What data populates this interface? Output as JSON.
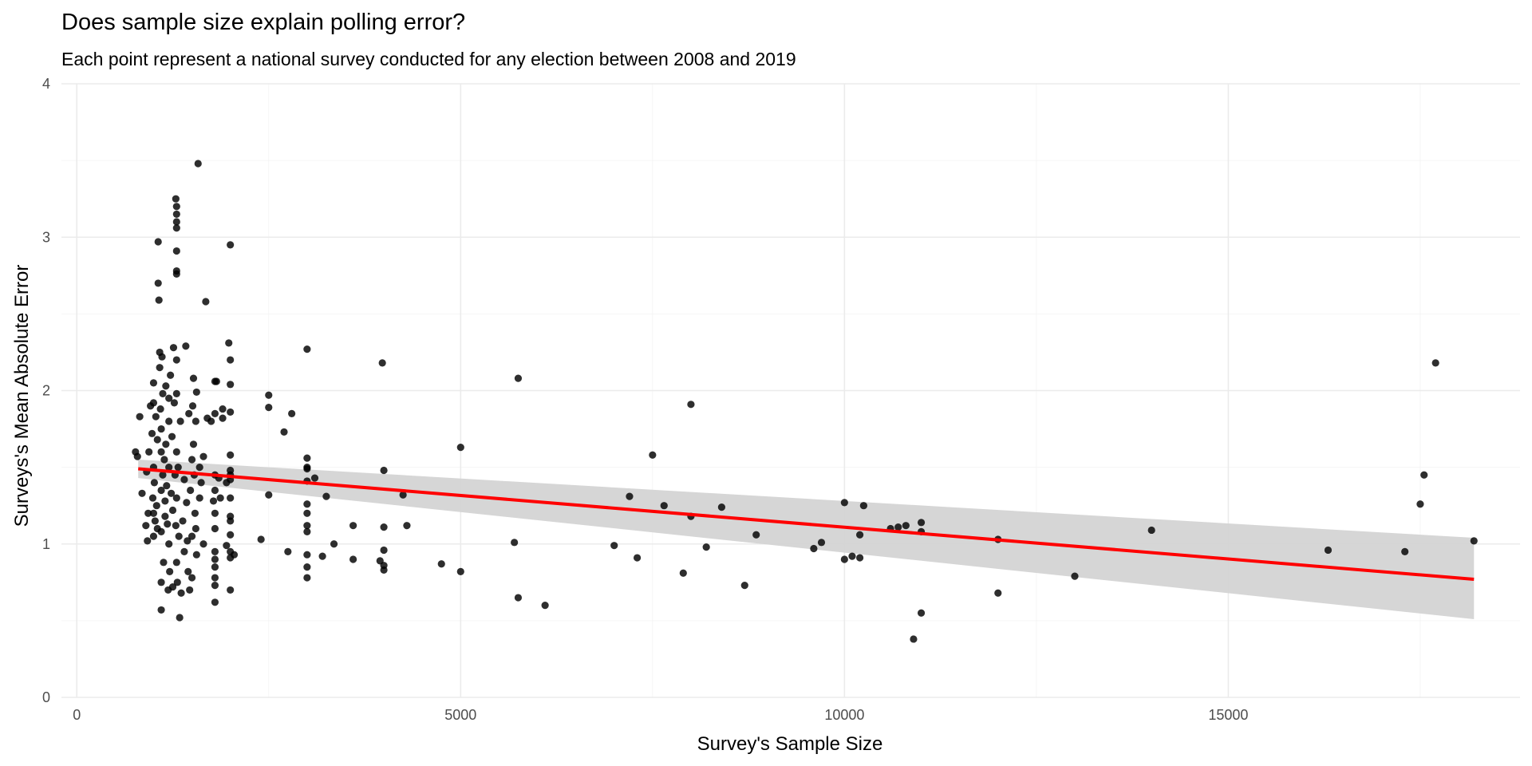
{
  "chart_data": {
    "type": "scatter",
    "title": "Does sample size explain polling error?",
    "subtitle": "Each point represent a national survey conducted for any election between 2008 and 2019",
    "xlabel": "Survey's Sample Size",
    "ylabel": "Surveys's Mean Absolute Error",
    "xlim": [
      -200,
      18800
    ],
    "ylim": [
      0,
      4
    ],
    "x_ticks": [
      0,
      5000,
      10000,
      15000
    ],
    "x_tick_labels": [
      "0",
      "5000",
      "10000",
      "15000"
    ],
    "y_ticks": [
      0,
      1,
      2,
      3,
      4
    ],
    "y_tick_labels": [
      "0",
      "1",
      "2",
      "3",
      "4"
    ],
    "grid": true,
    "colors": {
      "points": "#000000",
      "trend": "#ff0000",
      "band": "#d4d4d4"
    },
    "trend": {
      "x": [
        800,
        18200
      ],
      "y": [
        1.49,
        0.77
      ],
      "ci_lower": [
        1.43,
        0.51
      ],
      "ci_upper": [
        1.55,
        1.04
      ]
    },
    "points": [
      [
        765,
        1.6
      ],
      [
        790,
        1.57
      ],
      [
        820,
        1.83
      ],
      [
        850,
        1.33
      ],
      [
        900,
        1.12
      ],
      [
        910,
        1.47
      ],
      [
        920,
        1.02
      ],
      [
        930,
        1.2
      ],
      [
        940,
        1.6
      ],
      [
        960,
        1.9
      ],
      [
        980,
        1.72
      ],
      [
        990,
        1.3
      ],
      [
        1000,
        1.05
      ],
      [
        1000,
        1.2
      ],
      [
        1000,
        1.5
      ],
      [
        1000,
        1.92
      ],
      [
        1000,
        2.05
      ],
      [
        1010,
        1.4
      ],
      [
        1020,
        1.15
      ],
      [
        1030,
        1.83
      ],
      [
        1040,
        1.25
      ],
      [
        1050,
        1.1
      ],
      [
        1050,
        1.68
      ],
      [
        1060,
        2.97
      ],
      [
        1060,
        2.7
      ],
      [
        1070,
        2.59
      ],
      [
        1080,
        2.25
      ],
      [
        1080,
        2.15
      ],
      [
        1090,
        1.88
      ],
      [
        1100,
        1.75
      ],
      [
        1100,
        1.6
      ],
      [
        1100,
        1.35
      ],
      [
        1100,
        1.08
      ],
      [
        1100,
        0.75
      ],
      [
        1100,
        0.57
      ],
      [
        1110,
        2.22
      ],
      [
        1120,
        1.98
      ],
      [
        1120,
        1.45
      ],
      [
        1130,
        0.88
      ],
      [
        1140,
        1.55
      ],
      [
        1150,
        1.28
      ],
      [
        1150,
        1.18
      ],
      [
        1160,
        2.03
      ],
      [
        1160,
        1.65
      ],
      [
        1170,
        1.38
      ],
      [
        1180,
        1.13
      ],
      [
        1190,
        0.7
      ],
      [
        1200,
        1.95
      ],
      [
        1200,
        1.8
      ],
      [
        1200,
        1.5
      ],
      [
        1200,
        1.0
      ],
      [
        1210,
        0.82
      ],
      [
        1220,
        2.1
      ],
      [
        1230,
        1.33
      ],
      [
        1240,
        1.7
      ],
      [
        1250,
        1.22
      ],
      [
        1250,
        0.72
      ],
      [
        1260,
        2.28
      ],
      [
        1270,
        1.92
      ],
      [
        1280,
        1.45
      ],
      [
        1290,
        1.12
      ],
      [
        1290,
        3.25
      ],
      [
        1300,
        3.2
      ],
      [
        1300,
        3.15
      ],
      [
        1300,
        3.1
      ],
      [
        1300,
        3.06
      ],
      [
        1300,
        2.91
      ],
      [
        1300,
        2.78
      ],
      [
        1300,
        2.76
      ],
      [
        1300,
        2.2
      ],
      [
        1300,
        1.98
      ],
      [
        1300,
        1.6
      ],
      [
        1300,
        1.3
      ],
      [
        1300,
        0.88
      ],
      [
        1310,
        0.75
      ],
      [
        1320,
        1.5
      ],
      [
        1330,
        1.05
      ],
      [
        1340,
        0.52
      ],
      [
        1350,
        1.8
      ],
      [
        1360,
        0.68
      ],
      [
        1380,
        1.15
      ],
      [
        1400,
        1.42
      ],
      [
        1400,
        0.95
      ],
      [
        1420,
        2.29
      ],
      [
        1430,
        1.27
      ],
      [
        1440,
        1.02
      ],
      [
        1450,
        0.82
      ],
      [
        1460,
        1.85
      ],
      [
        1470,
        0.7
      ],
      [
        1480,
        1.35
      ],
      [
        1500,
        1.55
      ],
      [
        1500,
        1.05
      ],
      [
        1500,
        0.78
      ],
      [
        1510,
        1.9
      ],
      [
        1520,
        2.08
      ],
      [
        1520,
        1.65
      ],
      [
        1530,
        1.45
      ],
      [
        1540,
        1.2
      ],
      [
        1550,
        1.8
      ],
      [
        1550,
        1.1
      ],
      [
        1560,
        0.93
      ],
      [
        1560,
        1.99
      ],
      [
        1580,
        3.48
      ],
      [
        1600,
        1.3
      ],
      [
        1600,
        1.5
      ],
      [
        1620,
        1.4
      ],
      [
        1650,
        1.57
      ],
      [
        1650,
        1.0
      ],
      [
        1680,
        2.58
      ],
      [
        1700,
        1.82
      ],
      [
        1750,
        1.8
      ],
      [
        1780,
        1.28
      ],
      [
        1800,
        2.06
      ],
      [
        1800,
        1.85
      ],
      [
        1800,
        1.45
      ],
      [
        1800,
        1.35
      ],
      [
        1800,
        1.2
      ],
      [
        1800,
        1.1
      ],
      [
        1800,
        0.95
      ],
      [
        1800,
        0.9
      ],
      [
        1800,
        0.85
      ],
      [
        1800,
        0.78
      ],
      [
        1800,
        0.73
      ],
      [
        1800,
        0.62
      ],
      [
        1820,
        2.06
      ],
      [
        1850,
        1.43
      ],
      [
        1870,
        1.3
      ],
      [
        1900,
        1.88
      ],
      [
        1900,
        1.82
      ],
      [
        1950,
        1.4
      ],
      [
        1950,
        0.99
      ],
      [
        1980,
        2.31
      ],
      [
        2000,
        2.95
      ],
      [
        2000,
        2.2
      ],
      [
        2000,
        2.04
      ],
      [
        2000,
        1.86
      ],
      [
        2000,
        1.58
      ],
      [
        2000,
        1.48
      ],
      [
        2000,
        1.45
      ],
      [
        2000,
        1.42
      ],
      [
        2000,
        1.3
      ],
      [
        2000,
        1.18
      ],
      [
        2000,
        1.15
      ],
      [
        2000,
        1.06
      ],
      [
        2000,
        0.95
      ],
      [
        2000,
        0.91
      ],
      [
        2000,
        0.7
      ],
      [
        2050,
        0.93
      ],
      [
        2400,
        1.03
      ],
      [
        2500,
        1.97
      ],
      [
        2500,
        1.89
      ],
      [
        2500,
        1.32
      ],
      [
        2700,
        1.73
      ],
      [
        2750,
        0.95
      ],
      [
        2800,
        1.85
      ],
      [
        3000,
        2.27
      ],
      [
        3000,
        1.56
      ],
      [
        3000,
        1.5
      ],
      [
        3000,
        1.49
      ],
      [
        3000,
        1.41
      ],
      [
        3000,
        1.26
      ],
      [
        3000,
        1.2
      ],
      [
        3000,
        1.12
      ],
      [
        3000,
        1.08
      ],
      [
        3000,
        0.93
      ],
      [
        3000,
        0.85
      ],
      [
        3000,
        0.78
      ],
      [
        3100,
        1.43
      ],
      [
        3200,
        0.92
      ],
      [
        3250,
        1.31
      ],
      [
        3350,
        1.0
      ],
      [
        3600,
        1.12
      ],
      [
        3600,
        0.9
      ],
      [
        3950,
        0.89
      ],
      [
        3980,
        2.18
      ],
      [
        4000,
        1.48
      ],
      [
        4000,
        1.11
      ],
      [
        4000,
        0.96
      ],
      [
        4000,
        0.86
      ],
      [
        4000,
        0.83
      ],
      [
        4250,
        1.32
      ],
      [
        4300,
        1.12
      ],
      [
        4750,
        0.87
      ],
      [
        5000,
        1.63
      ],
      [
        5000,
        0.82
      ],
      [
        5700,
        1.01
      ],
      [
        5750,
        2.08
      ],
      [
        5750,
        0.65
      ],
      [
        6100,
        0.6
      ],
      [
        7000,
        0.99
      ],
      [
        7200,
        1.31
      ],
      [
        7300,
        0.91
      ],
      [
        7500,
        1.58
      ],
      [
        7650,
        1.25
      ],
      [
        7900,
        0.81
      ],
      [
        8000,
        1.91
      ],
      [
        8000,
        1.18
      ],
      [
        8200,
        0.98
      ],
      [
        8400,
        1.24
      ],
      [
        8700,
        0.73
      ],
      [
        8850,
        1.06
      ],
      [
        9600,
        0.97
      ],
      [
        9700,
        1.01
      ],
      [
        10000,
        1.27
      ],
      [
        10000,
        0.9
      ],
      [
        10100,
        0.92
      ],
      [
        10200,
        0.91
      ],
      [
        10200,
        1.06
      ],
      [
        10250,
        1.25
      ],
      [
        10600,
        1.1
      ],
      [
        10700,
        1.11
      ],
      [
        10800,
        1.12
      ],
      [
        10900,
        0.38
      ],
      [
        11000,
        1.14
      ],
      [
        11000,
        1.08
      ],
      [
        11000,
        0.55
      ],
      [
        12000,
        1.03
      ],
      [
        12000,
        0.68
      ],
      [
        13000,
        0.79
      ],
      [
        14000,
        1.09
      ],
      [
        16300,
        0.96
      ],
      [
        17300,
        0.95
      ],
      [
        17500,
        1.26
      ],
      [
        17550,
        1.45
      ],
      [
        17700,
        2.18
      ],
      [
        18200,
        1.02
      ]
    ]
  }
}
